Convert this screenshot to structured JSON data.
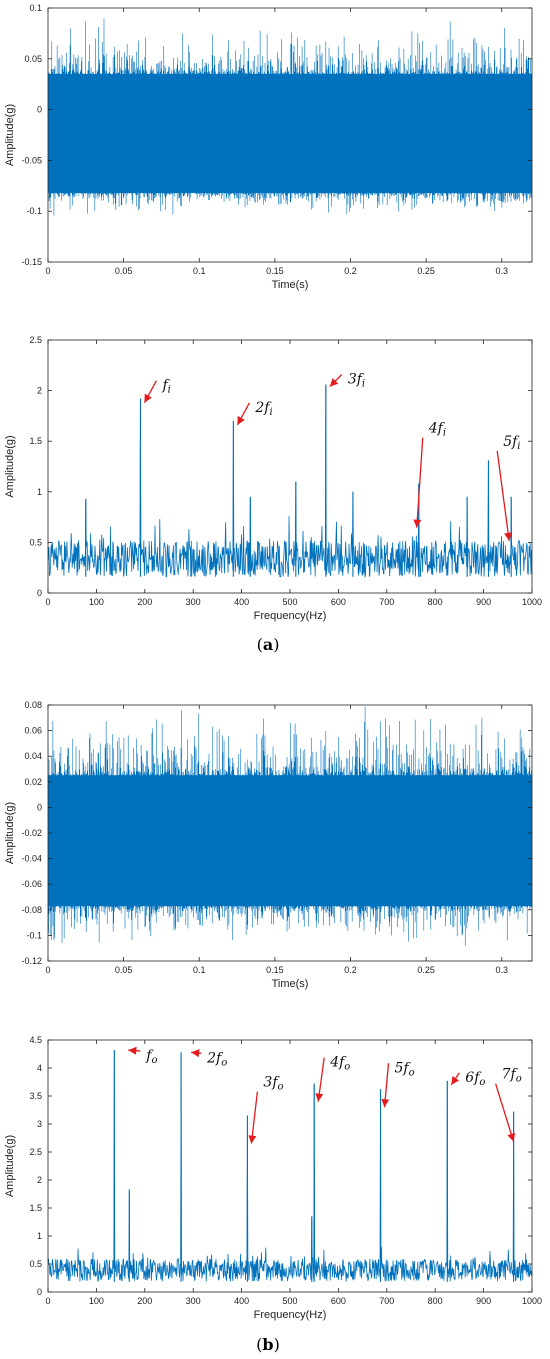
{
  "colors": {
    "signal": "#0072BD",
    "arrow": "#E41A1C",
    "axis": "#222222"
  },
  "chart_data": [
    {
      "type": "line",
      "xlabel": "Time(s)",
      "ylabel": "Amplitude(g)",
      "xlim": [
        0,
        0.32
      ],
      "ylim": [
        -0.15,
        0.1
      ],
      "xticks": [
        0,
        0.05,
        0.1,
        0.15,
        0.2,
        0.25,
        0.3
      ],
      "xtick_labels": [
        "0",
        "0.05",
        "0.1",
        "0.15",
        "0.2",
        "0.25",
        "0.3"
      ],
      "yticks": [
        -0.15,
        -0.1,
        -0.05,
        0,
        0.05,
        0.1
      ],
      "ytick_labels": [
        "-0.15",
        "-0.1",
        "-0.05",
        "0",
        "0.05",
        "0.1"
      ],
      "signal": {
        "dense_min": -0.082,
        "dense_max": 0.035,
        "min": -0.105,
        "max": 0.09,
        "points": 900
      },
      "annotations": []
    },
    {
      "type": "line",
      "xlabel": "Frequency(Hz)",
      "ylabel": "Amplitude(g)",
      "xlim": [
        0,
        1000
      ],
      "ylim": [
        0,
        2.5
      ],
      "xticks": [
        0,
        100,
        200,
        300,
        400,
        500,
        600,
        700,
        800,
        900,
        1000
      ],
      "xtick_labels": [
        "0",
        "100",
        "200",
        "300",
        "400",
        "500",
        "600",
        "700",
        "800",
        "900",
        "1000"
      ],
      "yticks": [
        0,
        0.5,
        1,
        1.5,
        2,
        2.5
      ],
      "ytick_labels": [
        "0",
        "0.5",
        "1",
        "1.5",
        "2",
        "2.5"
      ],
      "baseline": 0.4,
      "peaks": [
        {
          "x": 191,
          "y": 1.92
        },
        {
          "x": 383,
          "y": 1.7
        },
        {
          "x": 574,
          "y": 2.06
        },
        {
          "x": 766,
          "y": 1.08
        },
        {
          "x": 957,
          "y": 0.95
        },
        {
          "x": 910,
          "y": 1.31
        },
        {
          "x": 512,
          "y": 1.1
        },
        {
          "x": 78,
          "y": 0.93
        },
        {
          "x": 418,
          "y": 0.95
        },
        {
          "x": 630,
          "y": 1.0
        },
        {
          "x": 866,
          "y": 0.95
        }
      ],
      "annotations": [
        {
          "coef": "",
          "sub": "i",
          "x": 191,
          "y": 1.92
        },
        {
          "coef": "2",
          "sub": "i",
          "x": 383,
          "y": 1.7
        },
        {
          "coef": "3",
          "sub": "i",
          "x": 574,
          "y": 2.06
        },
        {
          "coef": "4",
          "sub": "i",
          "x": 766,
          "y": 1.08
        },
        {
          "coef": "5",
          "sub": "i",
          "x": 957,
          "y": 0.95
        }
      ]
    },
    {
      "type": "line",
      "xlabel": "Time(s)",
      "ylabel": "Amplitude(g)",
      "xlim": [
        0,
        0.32
      ],
      "ylim": [
        -0.12,
        0.08
      ],
      "xticks": [
        0,
        0.05,
        0.1,
        0.15,
        0.2,
        0.25,
        0.3
      ],
      "xtick_labels": [
        "0",
        "0.05",
        "0.1",
        "0.15",
        "0.2",
        "0.25",
        "0.3"
      ],
      "yticks": [
        -0.12,
        -0.1,
        -0.08,
        -0.06,
        -0.04,
        -0.02,
        0,
        0.02,
        0.04,
        0.06,
        0.08
      ],
      "ytick_labels": [
        "-0.12",
        "-0.1",
        "-0.08",
        "-0.06",
        "-0.04",
        "-0.02",
        "0",
        "0.02",
        "0.04",
        "0.06",
        "0.08"
      ],
      "signal": {
        "dense_min": -0.077,
        "dense_max": 0.025,
        "min": -0.11,
        "max": 0.08,
        "points": 900
      },
      "annotations": []
    },
    {
      "type": "line",
      "xlabel": "Frequency(Hz)",
      "ylabel": "Amplitude(g)",
      "xlim": [
        0,
        1000
      ],
      "ylim": [
        0,
        4.5
      ],
      "xticks": [
        0,
        100,
        200,
        300,
        400,
        500,
        600,
        700,
        800,
        900,
        1000
      ],
      "xtick_labels": [
        "0",
        "100",
        "200",
        "300",
        "400",
        "500",
        "600",
        "700",
        "800",
        "900",
        "1000"
      ],
      "yticks": [
        0,
        0.5,
        1,
        1.5,
        2,
        2.5,
        3,
        3.5,
        4,
        4.5
      ],
      "ytick_labels": [
        "0",
        "0.5",
        "1",
        "1.5",
        "2",
        "2.5",
        "3",
        "3.5",
        "4",
        "4.5"
      ],
      "baseline": 0.45,
      "peaks": [
        {
          "x": 137,
          "y": 4.32
        },
        {
          "x": 275,
          "y": 4.28
        },
        {
          "x": 412,
          "y": 3.15
        },
        {
          "x": 550,
          "y": 3.72
        },
        {
          "x": 687,
          "y": 3.62
        },
        {
          "x": 825,
          "y": 3.77
        },
        {
          "x": 962,
          "y": 3.22
        },
        {
          "x": 168,
          "y": 1.83
        },
        {
          "x": 545,
          "y": 1.35
        }
      ],
      "annotations": [
        {
          "coef": "",
          "sub": "o",
          "x": 137,
          "y": 4.32
        },
        {
          "coef": "2",
          "sub": "o",
          "x": 275,
          "y": 4.28
        },
        {
          "coef": "3",
          "sub": "o",
          "x": 412,
          "y": 3.15
        },
        {
          "coef": "4",
          "sub": "o",
          "x": 550,
          "y": 3.72
        },
        {
          "coef": "5",
          "sub": "o",
          "x": 687,
          "y": 3.62
        },
        {
          "coef": "6",
          "sub": "o",
          "x": 825,
          "y": 3.77
        },
        {
          "coef": "7",
          "sub": "o",
          "x": 962,
          "y": 3.22
        }
      ]
    }
  ],
  "captions": {
    "a_letter": "a",
    "b_letter": "b"
  }
}
